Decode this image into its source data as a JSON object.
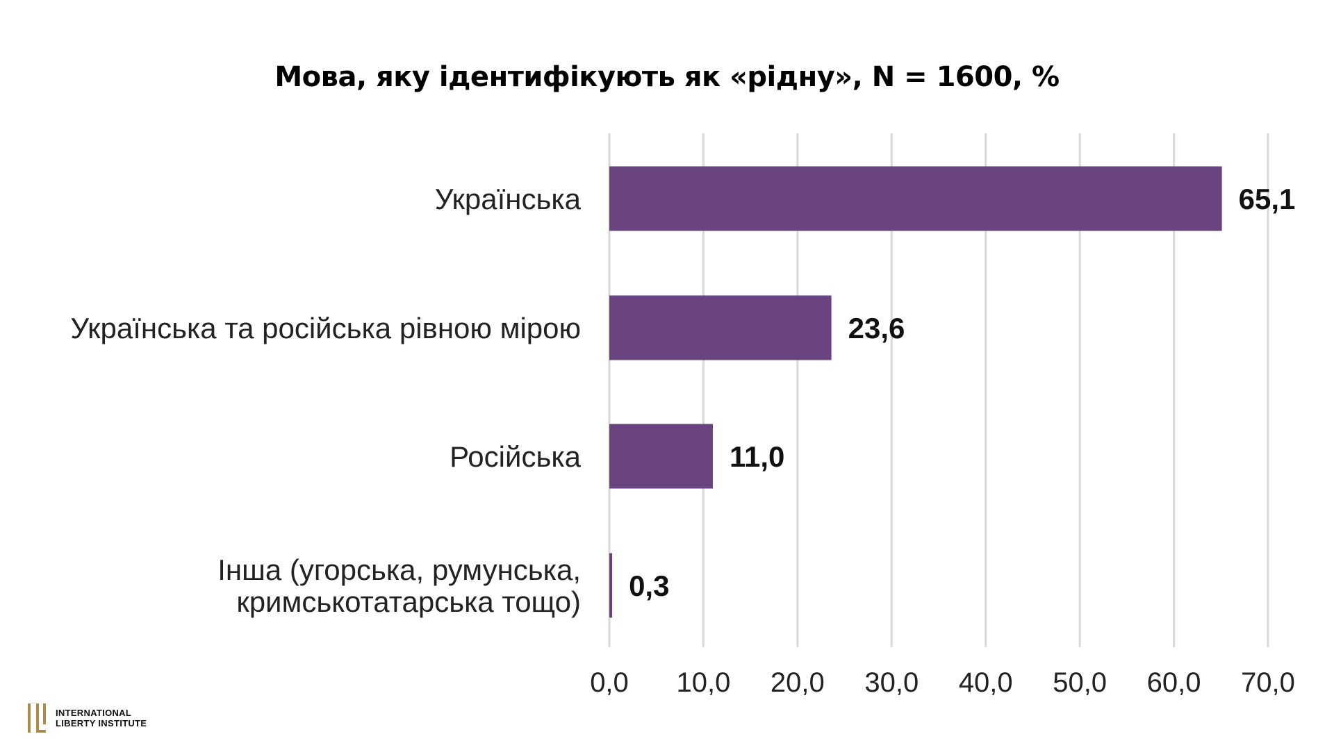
{
  "logo": {
    "line1": "International",
    "line2": "Liberty Institute"
  },
  "colors": {
    "bar": "#6a4481",
    "grid": "#d9d9d9",
    "logo_accent": "#b08a4a"
  },
  "chart_data": {
    "type": "bar",
    "orientation": "horizontal",
    "title": "Мова, яку ідентифікують як «рідну», N = 1600, %",
    "categories": [
      "Українська",
      "Українська та російська рівною мірою",
      "Російська",
      "Інша (угорська, румунська, кримськотатарська тощо)"
    ],
    "category_lines": [
      [
        "Українська"
      ],
      [
        "Українська та російська рівною мірою"
      ],
      [
        "Російська"
      ],
      [
        "Інша (угорська, румунська,",
        "кримськотатарська тощо)"
      ]
    ],
    "values": [
      65.1,
      23.6,
      11.0,
      0.3
    ],
    "value_labels": [
      "65,1",
      "23,6",
      "11,0",
      "0,3"
    ],
    "xlim": [
      0,
      70
    ],
    "xticks": [
      0,
      10,
      20,
      30,
      40,
      50,
      60,
      70
    ],
    "xtick_labels": [
      "0,0",
      "10,0",
      "20,0",
      "30,0",
      "40,0",
      "50,0",
      "60,0",
      "70,0"
    ],
    "grid": true,
    "legend": "none"
  }
}
